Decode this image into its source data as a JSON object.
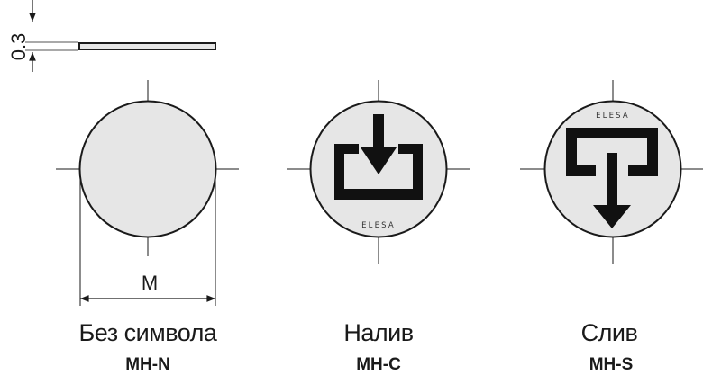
{
  "thickness_label": "0.3",
  "diameter_label": "M",
  "brand_text": "ELESA",
  "colors": {
    "disc_fill": "#e6e6e6",
    "line": "#1a1a1a",
    "symbol": "#111111"
  },
  "items": [
    {
      "name": "Без символа",
      "code": "MH-N",
      "icon": "none"
    },
    {
      "name": "Налив",
      "code": "MH-C",
      "icon": "fill-arrow-in-icon"
    },
    {
      "name": "Слив",
      "code": "MH-S",
      "icon": "drain-arrow-out-icon"
    }
  ]
}
